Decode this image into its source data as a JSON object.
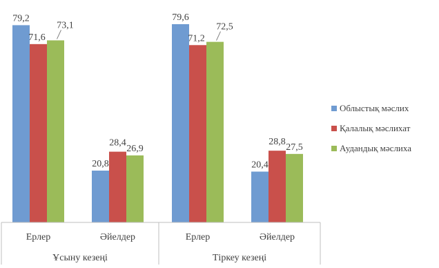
{
  "chart_data": {
    "type": "bar",
    "title": "",
    "xlabel": "",
    "ylabel": "",
    "ylim": [
      0,
      85
    ],
    "grid": false,
    "legend_position": "right",
    "groups": [
      {
        "label": "Ұсыну кезеңі",
        "categories": [
          "Ерлер",
          "Әйелдер"
        ]
      },
      {
        "label": "Тіркеу кезеңі",
        "categories": [
          "Ерлер",
          "Әйелдер"
        ]
      }
    ],
    "categories": [
      "Ұсыну кезеңі — Ерлер",
      "Ұсыну кезеңі — Әйелдер",
      "Тіркеу кезеңі — Ерлер",
      "Тіркеу кезеңі — Әйелдер"
    ],
    "series": [
      {
        "name": "Облыстық мәслих",
        "color": "#6f9bd1",
        "values": [
          79.2,
          20.8,
          79.6,
          20.4
        ],
        "labels": [
          "79,2",
          "20,8",
          "79,6",
          "20,4"
        ]
      },
      {
        "name": "Қалалық мәслихат",
        "color": "#c9504b",
        "values": [
          71.6,
          28.4,
          71.2,
          28.8
        ],
        "labels": [
          "71,6",
          "28,4",
          "71,2",
          "28,8"
        ]
      },
      {
        "name": "Аудандық мәслиха",
        "color": "#9bbb59",
        "values": [
          73.1,
          26.9,
          72.5,
          27.5
        ],
        "labels": [
          "73,1",
          "26,9",
          "72,5",
          "27,5"
        ]
      }
    ]
  }
}
